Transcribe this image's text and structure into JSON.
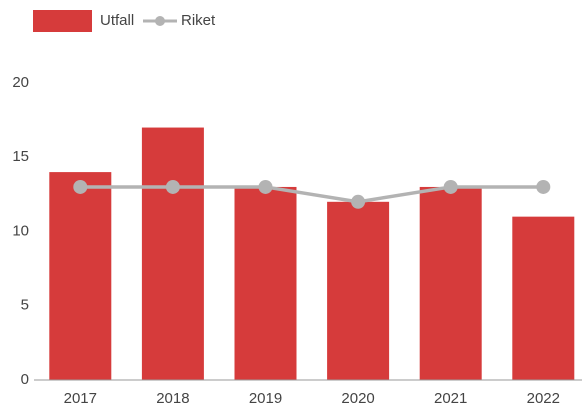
{
  "chart_data": {
    "type": "bar_line",
    "categories": [
      "2017",
      "2018",
      "2019",
      "2020",
      "2021",
      "2022"
    ],
    "series": [
      {
        "name": "Utfall",
        "type": "bar",
        "color": "#d63b3b",
        "values": [
          14,
          17,
          13,
          12,
          13,
          11
        ]
      },
      {
        "name": "Riket",
        "type": "line",
        "color": "#b3b3b3",
        "values": [
          13,
          13,
          13,
          12,
          13,
          13
        ]
      }
    ],
    "ylim": [
      0,
      20
    ],
    "yticks": [
      0,
      5,
      10,
      15,
      20
    ],
    "grid": false,
    "legend": "top-left"
  }
}
